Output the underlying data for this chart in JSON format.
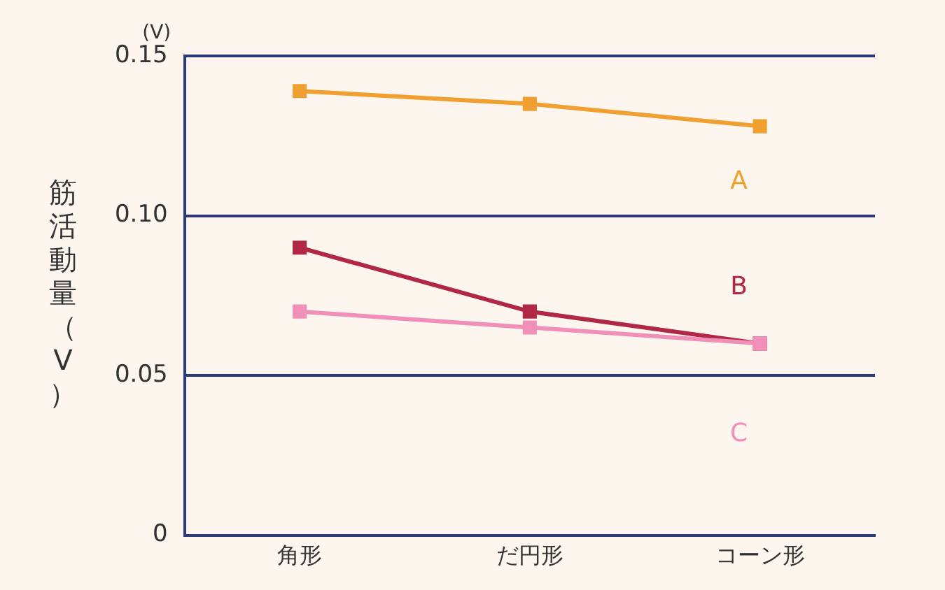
{
  "chart_data": {
    "type": "line",
    "ylabel": "筋活動量（V）",
    "annotations": [
      "(V)"
    ],
    "categories": [
      "角形",
      "だ円形",
      "コーン形"
    ],
    "series": [
      {
        "name": "A",
        "color": "#f0a030",
        "values": [
          0.139,
          0.135,
          0.128
        ]
      },
      {
        "name": "B",
        "color": "#b02845",
        "values": [
          0.09,
          0.07,
          0.06
        ]
      },
      {
        "name": "C",
        "color": "#f090b8",
        "values": [
          0.07,
          0.065,
          0.06
        ]
      }
    ],
    "ylim": [
      0,
      0.15
    ],
    "yticks": [
      0,
      {
        "value": 0.05,
        "label": "0.05"
      },
      {
        "value": 0.1,
        "label": "0.10"
      },
      0.15
    ],
    "grid": "y",
    "legend": false,
    "marker": "square",
    "line_style": "solid"
  }
}
